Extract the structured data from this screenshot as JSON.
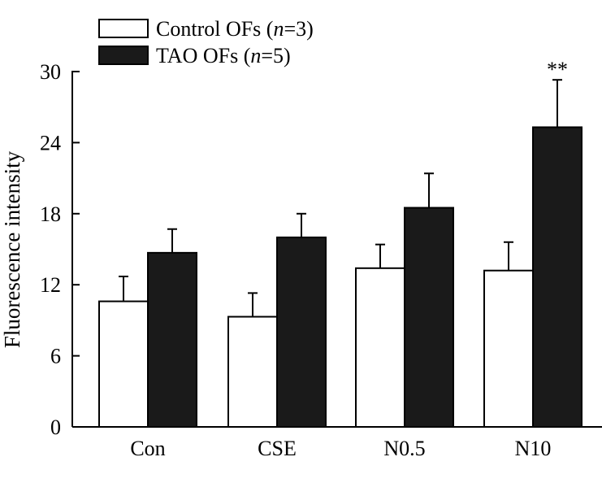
{
  "chart_data": {
    "type": "bar",
    "title": "",
    "xlabel": "",
    "ylabel": "Fluorescence intensity",
    "ylim": [
      0,
      30
    ],
    "yticks": [
      0,
      6,
      12,
      18,
      24,
      30
    ],
    "categories": [
      "Con",
      "CSE",
      "N0.5",
      "N10"
    ],
    "series": [
      {
        "name": "Control OFs",
        "n_value": "3",
        "fill": "#ffffff",
        "values": [
          10.6,
          9.3,
          13.4,
          13.2
        ],
        "errors": [
          2.1,
          2.0,
          2.0,
          2.4
        ]
      },
      {
        "name": "TAO OFs",
        "n_value": "5",
        "fill": "#1a1a1a",
        "values": [
          14.7,
          16.0,
          18.5,
          25.3
        ],
        "errors": [
          2.0,
          2.0,
          2.9,
          4.0
        ]
      }
    ],
    "annotations": [
      {
        "text": "**",
        "category": "N10",
        "series": "TAO OFs"
      }
    ],
    "legend": {
      "position": "top-left",
      "n_label": "n",
      "n_sep": "="
    },
    "colors": {
      "axis": "#000000",
      "bar_outline": "#000000"
    }
  }
}
